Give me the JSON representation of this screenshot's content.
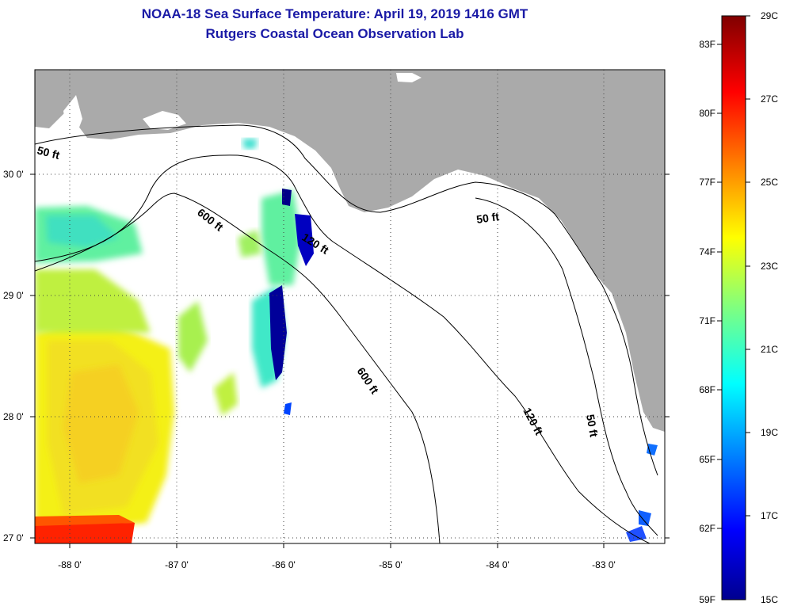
{
  "title": "NOAA-18 Sea Surface Temperature:  April 19, 2019 1416 GMT",
  "subtitle": "Rutgers Coastal Ocean Observation Lab",
  "lat_labels": [
    "30 0'",
    "29 0'",
    "28 0'",
    "27 0'"
  ],
  "lon_labels": [
    "-88 0'",
    "-87 0'",
    "-86 0'",
    "-85 0'",
    "-84 0'",
    "-83 0'"
  ],
  "contour_labels": {
    "c50_west": "50 ft",
    "c600_a": "600 ft",
    "c120_a": "120 ft",
    "c50_east": "50 ft",
    "c600_b": "600 ft",
    "c120_b": "120 ft",
    "c50_south": "50 ft"
  },
  "colorbar": {
    "fahrenheit": [
      "83F",
      "80F",
      "77F",
      "74F",
      "71F",
      "68F",
      "65F",
      "62F",
      "59F"
    ],
    "celsius": [
      "29C",
      "27C",
      "25C",
      "23C",
      "21C",
      "19C",
      "17C",
      "15C"
    ]
  },
  "colors": {
    "land": "#aaaaaa",
    "title": "#1a1aa6",
    "warm": "#ff2200",
    "cold": "#000088"
  }
}
